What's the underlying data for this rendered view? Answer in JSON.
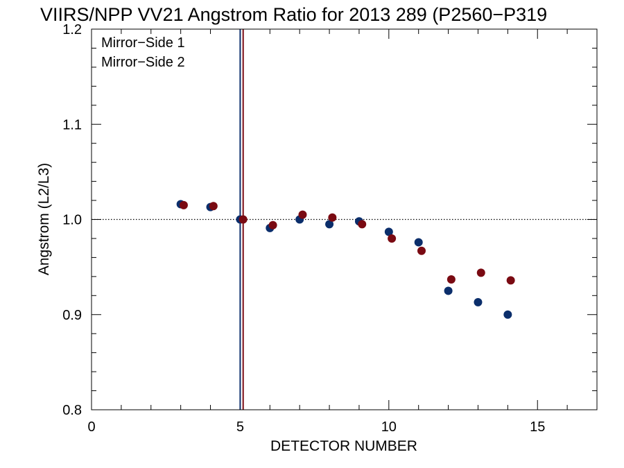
{
  "colors": {
    "mirror_side_1": "#0b2e6b",
    "mirror_side_2": "#7a0a12"
  },
  "chart_data": {
    "type": "scatter",
    "title": "VIIRS/NPP VV21 Angstrom Ratio for 2013 289 (P2560−P319",
    "xlabel": "DETECTOR NUMBER",
    "ylabel": "Angstrom (L2/L3)",
    "xlim": [
      0,
      17
    ],
    "ylim": [
      0.8,
      1.2
    ],
    "x_ticks": [
      0,
      5,
      10,
      15
    ],
    "y_ticks": [
      0.8,
      0.9,
      1.0,
      1.1,
      1.2
    ],
    "x_tick_labels": [
      "0",
      "5",
      "10",
      "15"
    ],
    "y_tick_labels": [
      "0.8",
      "0.9",
      "1.0",
      "1.1",
      "1.2"
    ],
    "reference_line_y": 1.0,
    "vertical_lines": [
      {
        "x": 5.0,
        "series": 0
      },
      {
        "x": 5.1,
        "series": 1
      }
    ],
    "legend_position": "top-left",
    "series": [
      {
        "name": "Mirror−Side 1",
        "x": [
          3,
          4,
          5,
          6,
          7,
          8,
          9,
          10,
          11,
          12,
          13,
          14
        ],
        "y": [
          1.016,
          1.013,
          1.0,
          0.991,
          1.0,
          0.995,
          0.998,
          0.987,
          0.976,
          0.925,
          0.913,
          0.9
        ]
      },
      {
        "name": "Mirror−Side 2",
        "x": [
          3.1,
          4.1,
          5.1,
          6.1,
          7.1,
          8.1,
          9.1,
          10.1,
          11.1,
          12.1,
          13.1,
          14.1
        ],
        "y": [
          1.015,
          1.014,
          1.0,
          0.994,
          1.005,
          1.002,
          0.995,
          0.98,
          0.967,
          0.937,
          0.944,
          0.936
        ]
      }
    ]
  }
}
